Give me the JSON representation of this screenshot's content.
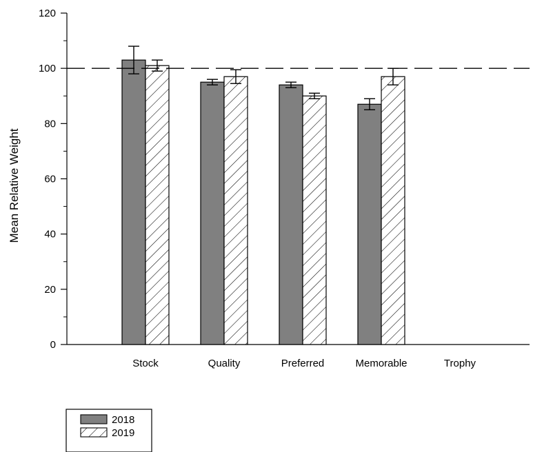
{
  "chart_data": {
    "type": "bar",
    "title": "",
    "xlabel": "",
    "ylabel": "Mean Relative Weight",
    "categories": [
      "Stock",
      "Quality",
      "Preferred",
      "Memorable",
      "Trophy"
    ],
    "series": [
      {
        "name": "2018",
        "values": [
          103,
          95,
          94,
          87,
          null
        ],
        "error": [
          5,
          1,
          1,
          2,
          null
        ],
        "fill": "#808080",
        "pattern": "solid"
      },
      {
        "name": "2019",
        "values": [
          101,
          97,
          90,
          97,
          null
        ],
        "error": [
          2,
          2.5,
          1,
          3,
          null
        ],
        "fill": "#ffffff",
        "pattern": "diagonal-hatch"
      }
    ],
    "ylim": [
      0,
      120
    ],
    "yticks": [
      0,
      20,
      40,
      60,
      80,
      100,
      120
    ],
    "yminor_step": 10,
    "reference_line": {
      "y": 100,
      "style": "dashed"
    },
    "grid": false,
    "legend": {
      "position": "bottom-left"
    }
  }
}
